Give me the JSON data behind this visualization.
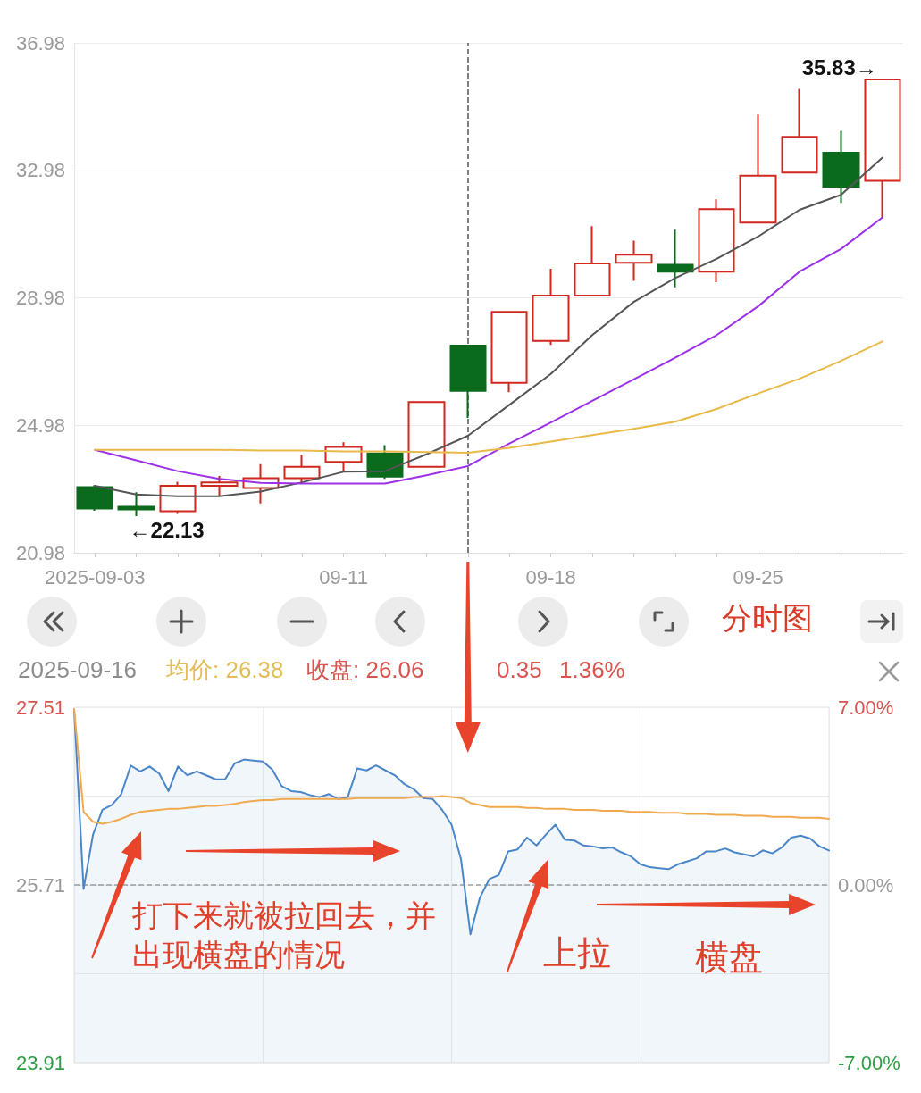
{
  "chart_data": [
    {
      "type": "candlestick",
      "categories": [
        "2025-09-03",
        null,
        null,
        null,
        null,
        null,
        "09-11",
        null,
        null,
        null,
        null,
        "09-18",
        null,
        null,
        null,
        null,
        "09-25",
        null,
        null,
        null
      ],
      "ohlc": [
        [
          23.04,
          23.1,
          22.3,
          22.37
        ],
        [
          22.42,
          22.88,
          22.13,
          22.34
        ],
        [
          22.28,
          23.21,
          22.2,
          23.08
        ],
        [
          23.08,
          23.39,
          22.75,
          23.19
        ],
        [
          23.01,
          23.76,
          22.53,
          23.32
        ],
        [
          23.32,
          24.05,
          23.19,
          23.68
        ],
        [
          23.83,
          24.45,
          23.52,
          24.3
        ],
        [
          24.1,
          24.36,
          23.3,
          23.37
        ],
        [
          23.68,
          25.71,
          23.68,
          25.71
        ],
        [
          27.48,
          27.51,
          25.21,
          26.06
        ],
        [
          26.31,
          28.54,
          26.02,
          28.54
        ],
        [
          27.63,
          29.89,
          27.5,
          29.05
        ],
        [
          29.05,
          31.23,
          29.03,
          30.06
        ],
        [
          30.08,
          30.77,
          29.51,
          30.33
        ],
        [
          30.02,
          31.12,
          29.31,
          29.8
        ],
        [
          29.8,
          32.07,
          29.47,
          31.76
        ],
        [
          31.34,
          34.73,
          31.32,
          32.81
        ],
        [
          32.91,
          35.54,
          32.89,
          34.03
        ],
        [
          33.53,
          34.22,
          31.96,
          32.47
        ],
        [
          32.65,
          35.83,
          31.47,
          35.83
        ]
      ],
      "colors": [
        "#0b6b1c",
        "#0b6b1c",
        "#d0281e",
        "#d0281e",
        "#d0281e",
        "#d0281e",
        "#d0281e",
        "#0b6b1c",
        "#d0281e",
        "#0b6b1c",
        "#d0281e",
        "#d0281e",
        "#d0281e",
        "#d0281e",
        "#0b6b1c",
        "#d0281e",
        "#d0281e",
        "#d0281e",
        "#0b6b1c",
        "#d0281e"
      ],
      "series": [
        {
          "type": "line",
          "color": "#555555",
          "values": [
            23.08,
            22.81,
            22.75,
            22.75,
            22.9,
            23.19,
            23.52,
            23.54,
            24.07,
            24.65,
            25.62,
            26.59,
            27.81,
            28.85,
            29.6,
            30.2,
            30.9,
            31.74,
            32.21,
            33.38
          ]
        },
        {
          "type": "line",
          "color": "#9b30e8",
          "values": [
            24.21,
            23.88,
            23.54,
            23.3,
            23.17,
            23.15,
            23.15,
            23.15,
            23.41,
            23.7,
            24.41,
            25.07,
            25.75,
            26.42,
            27.1,
            27.81,
            28.71,
            29.8,
            30.51,
            31.5
          ]
        },
        {
          "type": "line",
          "color": "#e9b949",
          "values": [
            24.21,
            24.21,
            24.21,
            24.21,
            24.19,
            24.19,
            24.16,
            24.16,
            24.14,
            24.12,
            24.27,
            24.47,
            24.67,
            24.87,
            25.09,
            25.49,
            25.98,
            26.44,
            27.0,
            27.61
          ]
        }
      ],
      "ylim": [
        20.98,
        36.98
      ],
      "yticks": [
        20.98,
        24.98,
        28.98,
        32.98,
        36.98
      ],
      "grid": "y",
      "annotations": [
        "←22.13",
        "35.83→",
        "分时图"
      ]
    },
    {
      "type": "line",
      "title": "2025-09-16",
      "categories": [
        null,
        null,
        null,
        null,
        null,
        null,
        null,
        null,
        null,
        null,
        null,
        null,
        null,
        null,
        null,
        null,
        null,
        null,
        null,
        null,
        null,
        null,
        null,
        null,
        null,
        null,
        null,
        null,
        null,
        null,
        null,
        null,
        null,
        null,
        null,
        null,
        null,
        null,
        null,
        null,
        null,
        null,
        null,
        null,
        null,
        null,
        null,
        null,
        null,
        null,
        null,
        null,
        null,
        null,
        null,
        null,
        null,
        null,
        null,
        null,
        null,
        null,
        null,
        null,
        null,
        null,
        null,
        null,
        null,
        null,
        null,
        null,
        null,
        null,
        null,
        null,
        null,
        null,
        null,
        null,
        null
      ],
      "series": [
        {
          "type": "area",
          "color": "#4a86c8",
          "values": [
            27.49,
            25.67,
            26.22,
            26.47,
            26.52,
            26.63,
            26.92,
            26.86,
            26.91,
            26.84,
            26.66,
            26.91,
            26.82,
            26.86,
            26.82,
            26.78,
            26.78,
            26.94,
            26.98,
            26.97,
            26.96,
            26.88,
            26.71,
            26.66,
            26.65,
            26.62,
            26.6,
            26.63,
            26.58,
            26.6,
            26.89,
            26.87,
            26.92,
            26.87,
            26.82,
            26.73,
            26.68,
            26.59,
            26.58,
            26.47,
            26.32,
            25.97,
            25.21,
            25.58,
            25.77,
            25.81,
            26.05,
            26.07,
            26.19,
            26.11,
            26.22,
            26.32,
            26.17,
            26.16,
            26.11,
            26.1,
            26.08,
            26.09,
            26.04,
            26.0,
            25.92,
            25.89,
            25.88,
            25.87,
            25.92,
            25.95,
            25.98,
            26.05,
            26.05,
            26.08,
            26.04,
            26.02,
            26.0,
            26.06,
            26.03,
            26.09,
            26.19,
            26.21,
            26.18,
            26.1,
            26.06
          ]
        },
        {
          "color": "#f0a94e",
          "values": [
            27.49,
            26.45,
            26.35,
            26.33,
            26.35,
            26.38,
            26.42,
            26.45,
            26.46,
            26.47,
            26.48,
            26.48,
            26.49,
            26.5,
            26.51,
            26.51,
            26.52,
            26.53,
            26.55,
            26.56,
            26.57,
            26.57,
            26.58,
            26.58,
            26.58,
            26.58,
            26.58,
            26.58,
            26.58,
            26.58,
            26.59,
            26.59,
            26.59,
            26.59,
            26.59,
            26.59,
            26.6,
            26.6,
            26.6,
            26.61,
            26.6,
            26.59,
            26.54,
            26.52,
            26.5,
            26.5,
            26.5,
            26.5,
            26.49,
            26.49,
            26.48,
            26.48,
            26.48,
            26.47,
            26.47,
            26.47,
            26.46,
            26.46,
            26.46,
            26.45,
            26.45,
            26.45,
            26.44,
            26.44,
            26.44,
            26.43,
            26.43,
            26.43,
            26.42,
            26.42,
            26.42,
            26.41,
            26.41,
            26.41,
            26.4,
            26.4,
            26.4,
            26.39,
            26.39,
            26.39,
            26.38
          ]
        }
      ],
      "ylim": [
        23.91,
        27.51
      ],
      "yticks": [
        23.91,
        {
          "value": 24.81,
          "label": null
        },
        25.71,
        {
          "value": 26.61,
          "label": null
        },
        27.51
      ],
      "y2lim": [
        -7,
        7
      ],
      "y2ticks": [
        {
          "value": -7,
          "label": "-7.00%"
        },
        {
          "value": 0,
          "label": "0.00%"
        },
        {
          "value": 7,
          "label": "7.00%"
        }
      ],
      "grid": true,
      "tick_labels": "y",
      "ref_lines": [
        {
          "axis": "y",
          "value": 25.71,
          "color": "#a0a0a0",
          "line_style": "dashed"
        }
      ],
      "annotations": [
        "均价: 26.38",
        "收盘: 26.06",
        "0.35",
        "1.36%",
        "打下来就被拉回去，并出现横盘的情况",
        "上拉",
        "横盘"
      ]
    }
  ]
}
